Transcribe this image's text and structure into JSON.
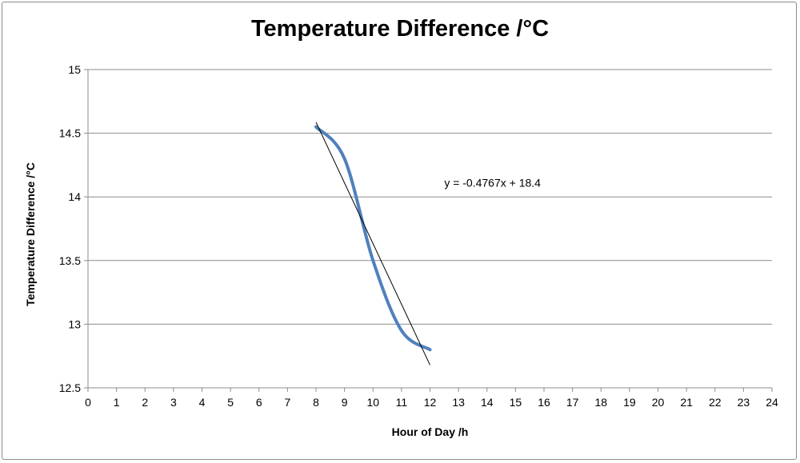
{
  "chart_data": {
    "type": "line",
    "title": "Temperature Difference /°C",
    "xlabel": "Hour of Day /h",
    "ylabel": "Temperature Difference /°C",
    "xlim": [
      0,
      24
    ],
    "ylim": [
      12.5,
      15
    ],
    "x_ticks": [
      "0",
      "1",
      "2",
      "3",
      "4",
      "5",
      "6",
      "7",
      "8",
      "9",
      "10",
      "11",
      "12",
      "13",
      "14",
      "15",
      "16",
      "17",
      "18",
      "19",
      "20",
      "21",
      "22",
      "23",
      "24"
    ],
    "y_ticks": [
      "12.5",
      "13",
      "13.5",
      "14",
      "14.5",
      "15"
    ],
    "grid": "horizontal",
    "smooth": true,
    "series": [
      {
        "x": [
          8,
          9,
          10,
          11,
          12
        ],
        "y": [
          14.55,
          14.3,
          13.5,
          12.95,
          12.8
        ],
        "color": "#4f81bd"
      }
    ],
    "trendline": {
      "type": "linear",
      "slope": -0.4767,
      "intercept": 18.4,
      "x_range": [
        8,
        12
      ],
      "equation_label": "y = -0.4767x + 18.4",
      "color": "#000000"
    }
  }
}
